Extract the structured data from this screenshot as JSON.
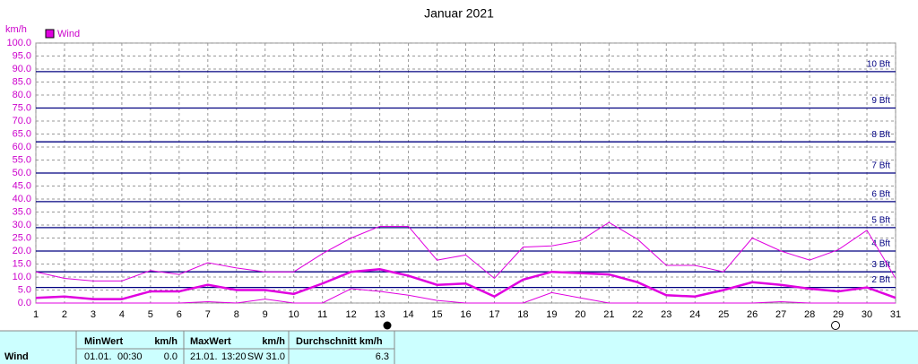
{
  "chart_data": {
    "type": "line",
    "title": "Januar 2021",
    "y_label": "km/h",
    "x": [
      1,
      2,
      3,
      4,
      5,
      6,
      7,
      8,
      9,
      10,
      11,
      12,
      13,
      14,
      15,
      16,
      17,
      18,
      19,
      20,
      21,
      22,
      23,
      24,
      25,
      26,
      27,
      28,
      29,
      30,
      31
    ],
    "xlim": [
      1,
      31
    ],
    "xticks": [
      1,
      2,
      3,
      4,
      5,
      6,
      7,
      8,
      9,
      10,
      11,
      12,
      13,
      14,
      15,
      16,
      17,
      18,
      19,
      20,
      21,
      22,
      23,
      24,
      25,
      26,
      27,
      28,
      29,
      30,
      31
    ],
    "ylim": [
      0,
      100
    ],
    "yticks": [
      {
        "value": 0,
        "label": "0.0"
      },
      {
        "value": 5,
        "label": "5.0"
      },
      {
        "value": 10,
        "label": "10.0"
      },
      {
        "value": 15,
        "label": "15.0"
      },
      {
        "value": 20,
        "label": "20.0"
      },
      {
        "value": 25,
        "label": "25.0"
      },
      {
        "value": 30,
        "label": "30.0"
      },
      {
        "value": 35,
        "label": "35.0"
      },
      {
        "value": 40,
        "label": "40.0"
      },
      {
        "value": 45,
        "label": "45.0"
      },
      {
        "value": 50,
        "label": "50.0"
      },
      {
        "value": 55,
        "label": "55.0"
      },
      {
        "value": 60,
        "label": "60.0"
      },
      {
        "value": 65,
        "label": "65.0"
      },
      {
        "value": 70,
        "label": "70.0"
      },
      {
        "value": 75,
        "label": "75.0"
      },
      {
        "value": 80,
        "label": "80.0"
      },
      {
        "value": 85,
        "label": "85.0"
      },
      {
        "value": 90,
        "label": "90.0"
      },
      {
        "value": 95,
        "label": "95.0"
      },
      {
        "value": 100,
        "label": "100.0"
      }
    ],
    "grid": true,
    "bft_lines": [
      {
        "value": 6,
        "label": "2 Bft"
      },
      {
        "value": 12,
        "label": "3 Bft"
      },
      {
        "value": 20,
        "label": "4 Bft"
      },
      {
        "value": 29,
        "label": "5 Bft"
      },
      {
        "value": 39,
        "label": "6 Bft"
      },
      {
        "value": 50,
        "label": "7 Bft"
      },
      {
        "value": 62,
        "label": "8 Bft"
      },
      {
        "value": 75,
        "label": "9 Bft"
      },
      {
        "value": 89,
        "label": "10 Bft"
      }
    ],
    "series": [
      {
        "name": "Wind",
        "color": "#e000e0",
        "width": 2.5,
        "values": [
          2,
          2.5,
          1.5,
          1.5,
          4.5,
          4.5,
          7,
          5,
          5,
          3.5,
          7.5,
          12,
          13,
          10.5,
          7,
          7.5,
          2.5,
          9,
          12,
          11.5,
          11,
          8,
          3,
          2.5,
          5,
          8,
          7,
          5.5,
          4.5,
          6,
          2
        ]
      },
      {
        "color": "#e000e0",
        "width": 1,
        "values": [
          12,
          9.5,
          8.5,
          8.5,
          12.5,
          11,
          15.5,
          13.5,
          12,
          12,
          19,
          25,
          29.5,
          29.5,
          16.5,
          18.5,
          9.5,
          21.5,
          22,
          24,
          31,
          24.5,
          14.5,
          14.5,
          12,
          25,
          20,
          16.5,
          20.5,
          28,
          9.5
        ]
      },
      {
        "color": "#e000e0",
        "width": 1,
        "values": [
          0,
          0,
          0,
          0,
          0,
          0,
          0.5,
          0,
          1.5,
          0,
          0,
          5.5,
          4.5,
          3,
          1,
          0,
          0,
          0,
          4,
          2,
          0,
          0,
          0,
          0,
          0,
          0,
          0.5,
          0,
          0,
          0,
          0
        ]
      }
    ]
  },
  "footer": {
    "row_label": "Wind",
    "min": {
      "header": "MinWert",
      "unit": "km/h",
      "date": "01.01.",
      "time": "00:30",
      "value": "0.0"
    },
    "max": {
      "header": "MaxWert",
      "unit": "km/h",
      "date": "21.01.",
      "time": "13:20",
      "value": "SW 31.0"
    },
    "avg": {
      "header": "Durchschnitt km/h",
      "value": "6.3"
    }
  }
}
